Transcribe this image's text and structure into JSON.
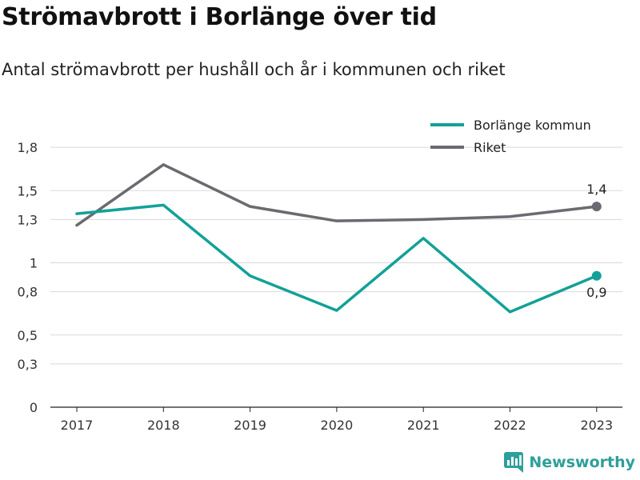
{
  "header": {
    "title": "Strömavbrott i Borlänge över tid",
    "subtitle": "Antal strömavbrott per hushåll och år i kommunen och riket"
  },
  "branding": {
    "name": "Newsworthy",
    "icon": "newsworthy-logo-icon"
  },
  "colors": {
    "borlange": "#13a197",
    "riket": "#6b6a70",
    "grid": "#d9d9d9",
    "brand": "#2e9f9a"
  },
  "chart_data": {
    "type": "line",
    "title": "Strömavbrott i Borlänge över tid",
    "subtitle": "Antal strömavbrott per hushåll och år i kommunen och riket",
    "xlabel": "",
    "ylabel": "",
    "categories": [
      "2017",
      "2018",
      "2019",
      "2020",
      "2021",
      "2022",
      "2023"
    ],
    "ylim": [
      0,
      2.1
    ],
    "yticks": [
      0,
      0.3,
      0.5,
      0.8,
      1,
      1.3,
      1.5,
      1.8
    ],
    "ytick_labels": [
      "0",
      "0,3",
      "0,5",
      "0,8",
      "1",
      "1,3",
      "1,5",
      "1,8"
    ],
    "grid": true,
    "legend_position": "top-right",
    "series": [
      {
        "name": "Borlänge kommun",
        "color": "#13a197",
        "values": [
          1.34,
          1.4,
          0.91,
          0.67,
          1.17,
          0.66,
          0.91
        ],
        "end_label": "0,9"
      },
      {
        "name": "Riket",
        "color": "#6b6a70",
        "values": [
          1.26,
          1.68,
          1.39,
          1.29,
          1.3,
          1.32,
          1.39
        ],
        "end_label": "1,4"
      }
    ]
  }
}
